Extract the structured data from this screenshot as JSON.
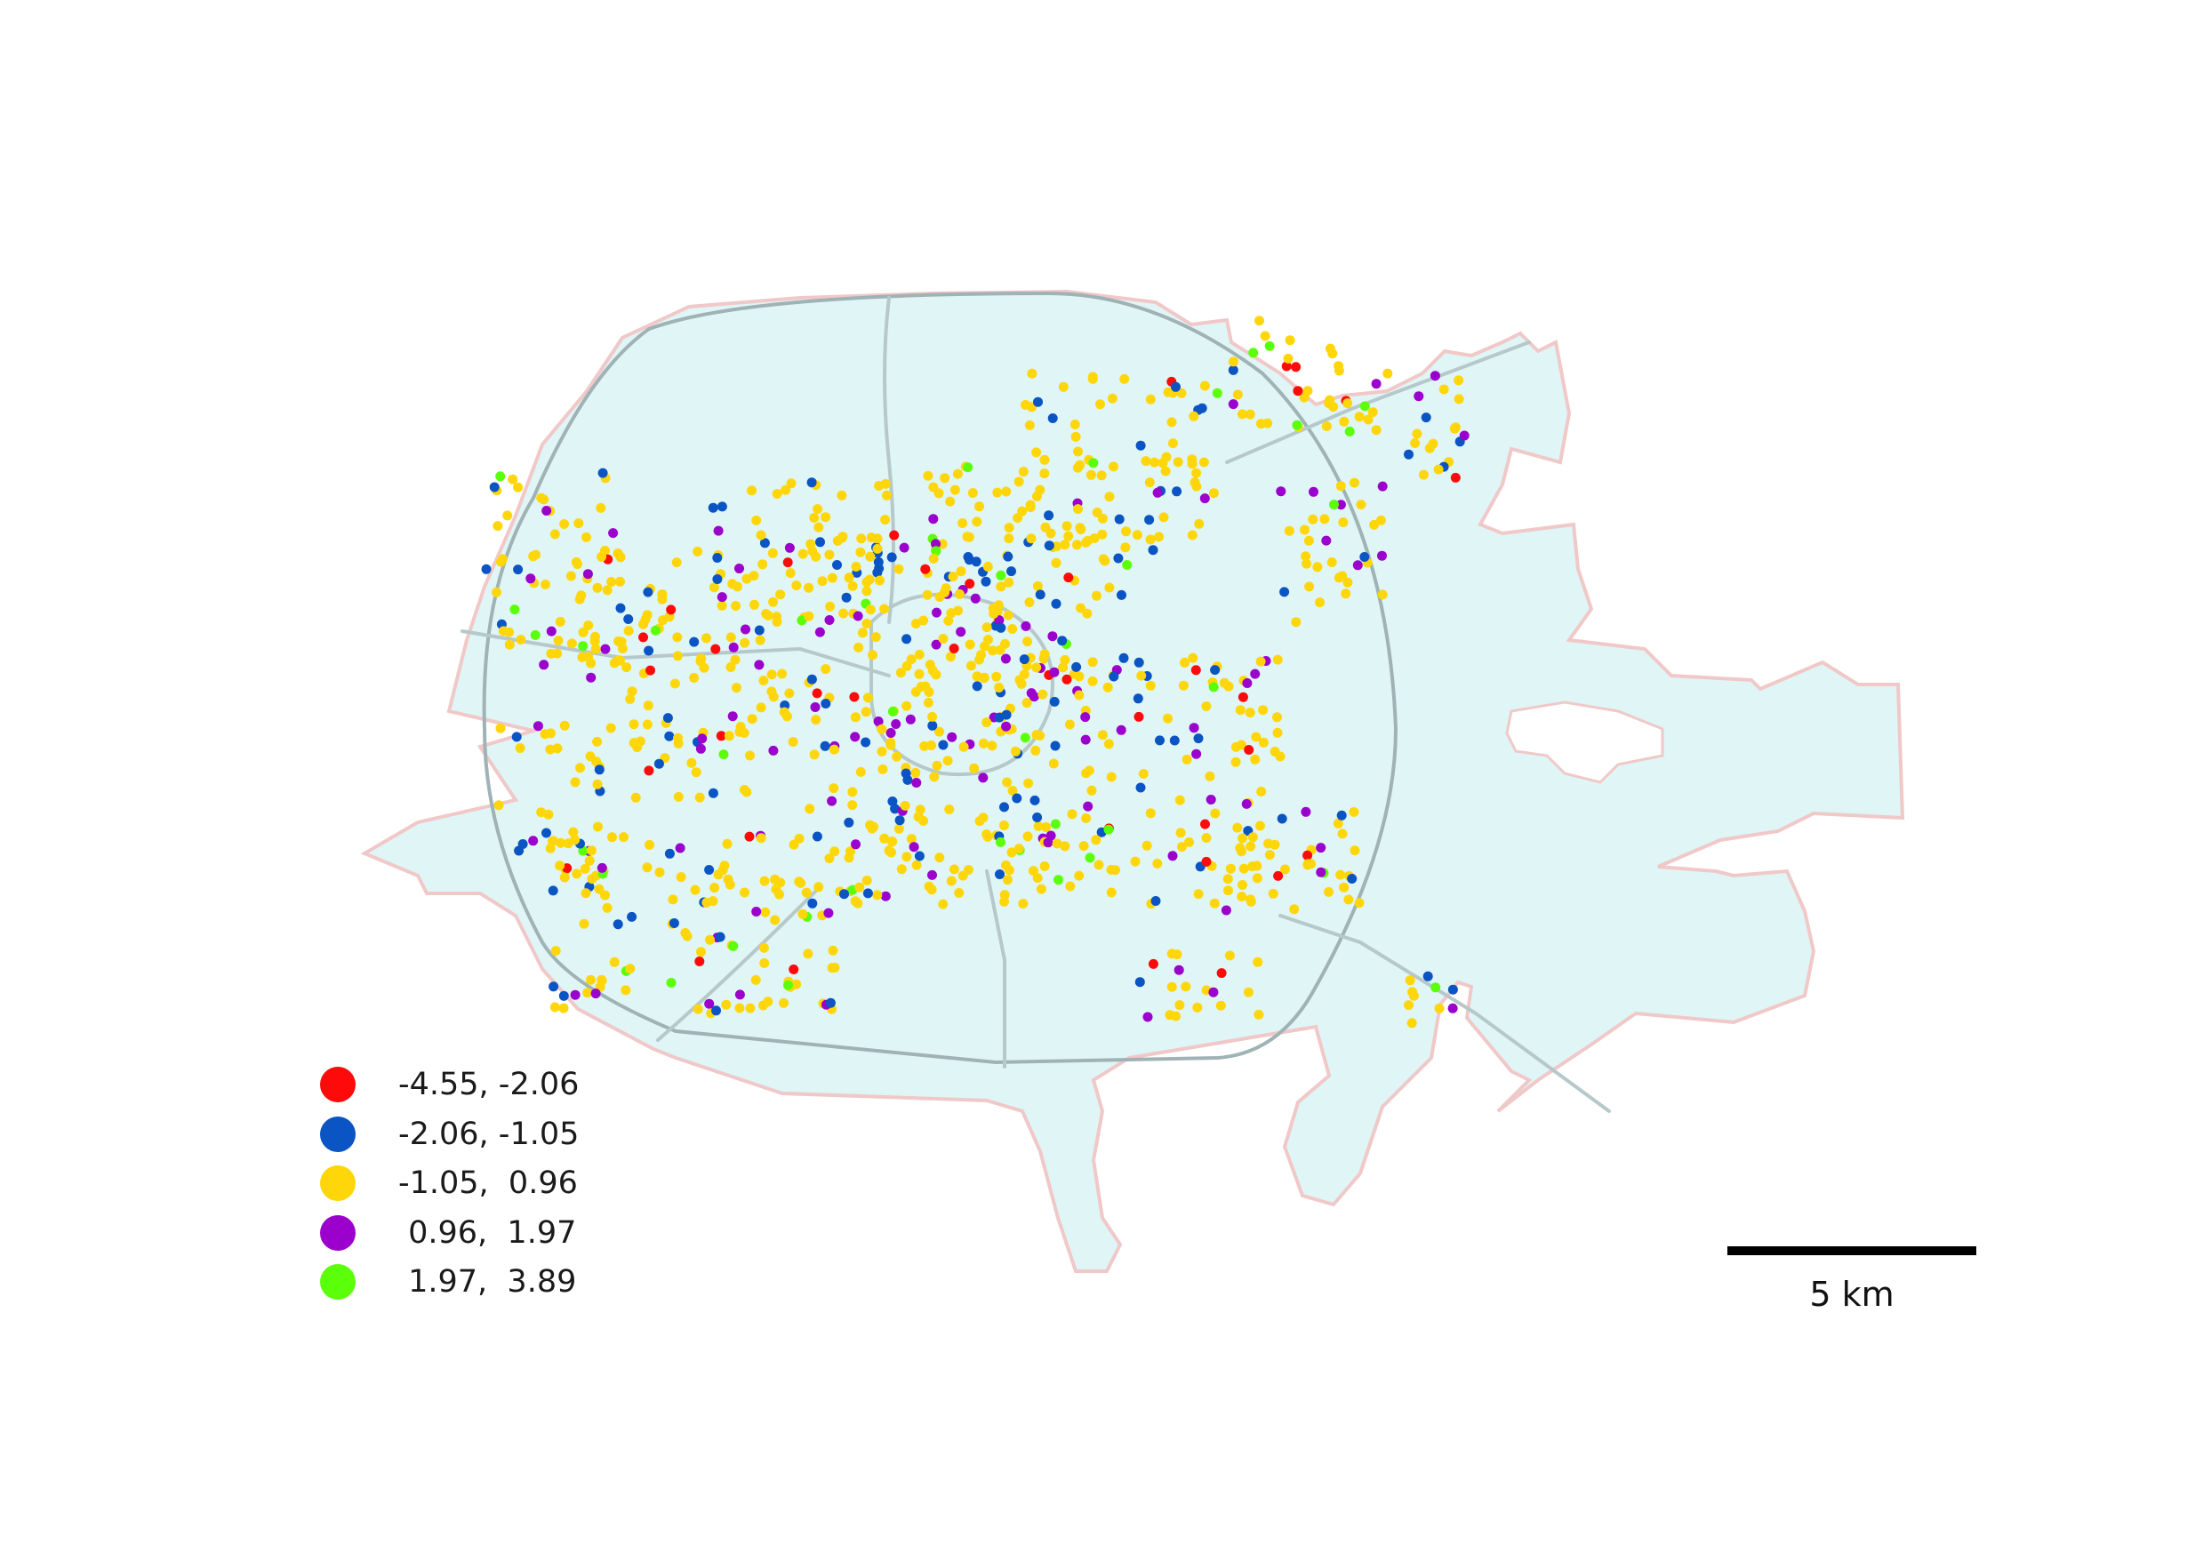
{
  "map": {
    "scale_label": "5 km",
    "colors": {
      "region_fill": "#dff5f6",
      "region_stroke": "#f1c8c8",
      "road": "#b6c8ca",
      "ring": "#9fb3b6"
    },
    "legend": [
      {
        "label": "-4.55, -2.06",
        "color": "#ff0a0a"
      },
      {
        "label": "-2.06, -1.05",
        "color": "#0a54c4"
      },
      {
        "label": "-1.05,  0.96",
        "color": "#ffd60a"
      },
      {
        "label": " 0.96,  1.97",
        "color": "#9b00cc"
      },
      {
        "label": " 1.97,  3.89",
        "color": "#5cff0a"
      }
    ]
  }
}
